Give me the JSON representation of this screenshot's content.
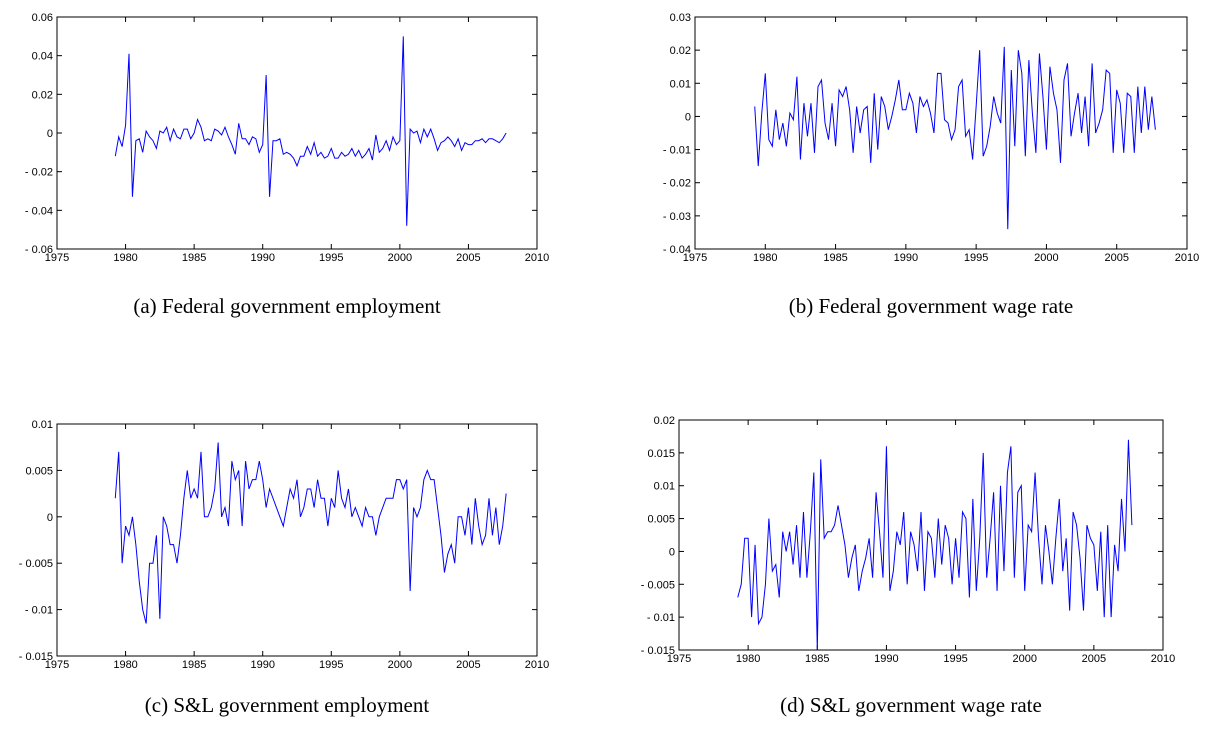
{
  "chart_data": [
    {
      "type": "line",
      "caption": "(a) Federal government employment",
      "color": "#0000ff",
      "xlim": [
        1975,
        2010
      ],
      "xticks": [
        1975,
        1980,
        1985,
        1990,
        1995,
        2000,
        2005,
        2010
      ],
      "ylim": [
        -0.06,
        0.06
      ],
      "yticks": [
        {
          "value": -0.06,
          "label": "- 0.06"
        },
        {
          "value": -0.04,
          "label": "- 0.04"
        },
        {
          "value": -0.02,
          "label": "- 0.02"
        },
        0,
        0.02,
        0.04,
        0.06
      ],
      "x": [
        1979.25,
        1979.5,
        1979.75,
        1980,
        1980.25,
        1980.5,
        1980.75,
        1981,
        1981.25,
        1981.5,
        1981.75,
        1982,
        1982.25,
        1982.5,
        1982.75,
        1983,
        1983.25,
        1983.5,
        1983.75,
        1984,
        1984.25,
        1984.5,
        1984.75,
        1985,
        1985.25,
        1985.5,
        1985.75,
        1986,
        1986.25,
        1986.5,
        1986.75,
        1987,
        1987.25,
        1987.5,
        1987.75,
        1988,
        1988.25,
        1988.5,
        1988.75,
        1989,
        1989.25,
        1989.5,
        1989.75,
        1990,
        1990.25,
        1990.5,
        1990.75,
        1991,
        1991.25,
        1991.5,
        1991.75,
        1992,
        1992.25,
        1992.5,
        1992.75,
        1993,
        1993.25,
        1993.5,
        1993.75,
        1994,
        1994.25,
        1994.5,
        1994.75,
        1995,
        1995.25,
        1995.5,
        1995.75,
        1996,
        1996.25,
        1996.5,
        1996.75,
        1997,
        1997.25,
        1997.5,
        1997.75,
        1998,
        1998.25,
        1998.5,
        1998.75,
        1999,
        1999.25,
        1999.5,
        1999.75,
        2000,
        2000.25,
        2000.5,
        2000.75,
        2001,
        2001.25,
        2001.5,
        2001.75,
        2002,
        2002.25,
        2002.5,
        2002.75,
        2003,
        2003.25,
        2003.5,
        2003.75,
        2004,
        2004.25,
        2004.5,
        2004.75,
        2005,
        2005.25,
        2005.5,
        2005.75,
        2006,
        2006.25,
        2006.5,
        2006.75,
        2007,
        2007.25,
        2007.5,
        2007.75
      ],
      "values": [
        -0.012,
        -0.002,
        -0.007,
        0.004,
        0.041,
        -0.033,
        -0.004,
        -0.003,
        -0.01,
        0.001,
        -0.002,
        -0.004,
        -0.008,
        0.001,
        0.0,
        0.003,
        -0.004,
        0.002,
        -0.002,
        -0.003,
        0.002,
        0.002,
        -0.003,
        0.0,
        0.007,
        0.003,
        -0.004,
        -0.003,
        -0.004,
        0.002,
        0.001,
        -0.001,
        0.003,
        -0.002,
        -0.006,
        -0.011,
        0.005,
        -0.003,
        -0.003,
        -0.006,
        -0.002,
        -0.003,
        -0.01,
        -0.006,
        0.03,
        -0.033,
        -0.004,
        -0.004,
        -0.003,
        -0.011,
        -0.01,
        -0.011,
        -0.013,
        -0.017,
        -0.012,
        -0.012,
        -0.007,
        -0.011,
        -0.005,
        -0.012,
        -0.01,
        -0.013,
        -0.012,
        -0.008,
        -0.013,
        -0.013,
        -0.01,
        -0.012,
        -0.011,
        -0.008,
        -0.012,
        -0.009,
        -0.013,
        -0.011,
        -0.008,
        -0.014,
        -0.001,
        -0.01,
        -0.008,
        -0.004,
        -0.009,
        -0.002,
        -0.006,
        -0.004,
        0.05,
        -0.048,
        0.002,
        0.0,
        0.001,
        -0.005,
        0.002,
        -0.002,
        0.002,
        -0.003,
        -0.009,
        -0.005,
        -0.004,
        -0.002,
        -0.004,
        -0.007,
        -0.003,
        -0.009,
        -0.005,
        -0.006,
        -0.006,
        -0.004,
        -0.004,
        -0.003,
        -0.005,
        -0.003,
        -0.003,
        -0.004,
        -0.005,
        -0.003,
        0.0
      ]
    },
    {
      "type": "line",
      "caption": "(b) Federal government wage rate",
      "color": "#0000ff",
      "xlim": [
        1975,
        2010
      ],
      "xticks": [
        1975,
        1980,
        1985,
        1990,
        1995,
        2000,
        2005,
        2010
      ],
      "ylim": [
        -0.04,
        0.03
      ],
      "yticks": [
        {
          "value": -0.04,
          "label": "- 0.04"
        },
        {
          "value": -0.03,
          "label": "- 0.03"
        },
        {
          "value": -0.02,
          "label": "- 0.02"
        },
        {
          "value": -0.01,
          "label": "- 0.01"
        },
        0,
        0.01,
        0.02,
        0.03
      ],
      "x": [
        1979.25,
        1979.5,
        1979.75,
        1980,
        1980.25,
        1980.5,
        1980.75,
        1981,
        1981.25,
        1981.5,
        1981.75,
        1982,
        1982.25,
        1982.5,
        1982.75,
        1983,
        1983.25,
        1983.5,
        1983.75,
        1984,
        1984.25,
        1984.5,
        1984.75,
        1985,
        1985.25,
        1985.5,
        1985.75,
        1986,
        1986.25,
        1986.5,
        1986.75,
        1987,
        1987.25,
        1987.5,
        1987.75,
        1988,
        1988.25,
        1988.5,
        1988.75,
        1989,
        1989.25,
        1989.5,
        1989.75,
        1990,
        1990.25,
        1990.5,
        1990.75,
        1991,
        1991.25,
        1991.5,
        1991.75,
        1992,
        1992.25,
        1992.5,
        1992.75,
        1993,
        1993.25,
        1993.5,
        1993.75,
        1994,
        1994.25,
        1994.5,
        1994.75,
        1995,
        1995.25,
        1995.5,
        1995.75,
        1996,
        1996.25,
        1996.5,
        1996.75,
        1997,
        1997.25,
        1997.5,
        1997.75,
        1998,
        1998.25,
        1998.5,
        1998.75,
        1999,
        1999.25,
        1999.5,
        1999.75,
        2000,
        2000.25,
        2000.5,
        2000.75,
        2001,
        2001.25,
        2001.5,
        2001.75,
        2002,
        2002.25,
        2002.5,
        2002.75,
        2003,
        2003.25,
        2003.5,
        2003.75,
        2004,
        2004.25,
        2004.5,
        2004.75,
        2005,
        2005.25,
        2005.5,
        2005.75,
        2006,
        2006.25,
        2006.5,
        2006.75,
        2007,
        2007.25,
        2007.5,
        2007.75
      ],
      "values": [
        0.003,
        -0.015,
        0.001,
        0.013,
        -0.007,
        -0.009,
        0.002,
        -0.007,
        -0.002,
        -0.009,
        0.001,
        -0.001,
        0.012,
        -0.013,
        0.004,
        -0.006,
        0.004,
        -0.011,
        0.009,
        0.011,
        -0.002,
        -0.007,
        0.004,
        -0.009,
        0.008,
        0.006,
        0.009,
        0.002,
        -0.011,
        0.003,
        -0.005,
        0.002,
        0.003,
        -0.014,
        0.007,
        -0.01,
        0.006,
        0.003,
        -0.004,
        0.0,
        0.005,
        0.011,
        0.002,
        0.002,
        0.007,
        0.004,
        -0.005,
        0.006,
        0.003,
        0.005,
        0.001,
        -0.005,
        0.013,
        0.013,
        -0.001,
        -0.002,
        -0.007,
        -0.004,
        0.009,
        0.011,
        -0.006,
        -0.004,
        -0.013,
        0.003,
        0.02,
        -0.012,
        -0.009,
        -0.003,
        0.006,
        0.001,
        -0.002,
        0.021,
        -0.034,
        0.014,
        -0.009,
        0.02,
        0.013,
        -0.012,
        0.017,
        0.001,
        -0.011,
        0.019,
        0.006,
        -0.01,
        0.015,
        0.007,
        0.002,
        -0.014,
        0.011,
        0.016,
        -0.006,
        0.001,
        0.007,
        -0.005,
        0.006,
        -0.009,
        0.016,
        -0.005,
        -0.002,
        0.002,
        0.014,
        0.013,
        -0.011,
        0.008,
        0.004,
        -0.011,
        0.007,
        0.006,
        -0.011,
        0.009,
        -0.005,
        0.009,
        -0.004,
        0.006,
        -0.004
      ]
    },
    {
      "type": "line",
      "caption": "(c) S&L government employment",
      "color": "#0000ff",
      "xlim": [
        1975,
        2010
      ],
      "xticks": [
        1975,
        1980,
        1985,
        1990,
        1995,
        2000,
        2005,
        2010
      ],
      "ylim": [
        -0.015,
        0.01
      ],
      "yticks": [
        {
          "value": -0.015,
          "label": "- 0.015"
        },
        {
          "value": -0.01,
          "label": "- 0.01"
        },
        {
          "value": -0.005,
          "label": "- 0.005"
        },
        0,
        0.005,
        0.01
      ],
      "x": [
        1979.25,
        1979.5,
        1979.75,
        1980,
        1980.25,
        1980.5,
        1980.75,
        1981,
        1981.25,
        1981.5,
        1981.75,
        1982,
        1982.25,
        1982.5,
        1982.75,
        1983,
        1983.25,
        1983.5,
        1983.75,
        1984,
        1984.25,
        1984.5,
        1984.75,
        1985,
        1985.25,
        1985.5,
        1985.75,
        1986,
        1986.25,
        1986.5,
        1986.75,
        1987,
        1987.25,
        1987.5,
        1987.75,
        1988,
        1988.25,
        1988.5,
        1988.75,
        1989,
        1989.25,
        1989.5,
        1989.75,
        1990,
        1990.25,
        1990.5,
        1990.75,
        1991,
        1991.25,
        1991.5,
        1991.75,
        1992,
        1992.25,
        1992.5,
        1992.75,
        1993,
        1993.25,
        1993.5,
        1993.75,
        1994,
        1994.25,
        1994.5,
        1994.75,
        1995,
        1995.25,
        1995.5,
        1995.75,
        1996,
        1996.25,
        1996.5,
        1996.75,
        1997,
        1997.25,
        1997.5,
        1997.75,
        1998,
        1998.25,
        1998.5,
        1998.75,
        1999,
        1999.25,
        1999.5,
        1999.75,
        2000,
        2000.25,
        2000.5,
        2000.75,
        2001,
        2001.25,
        2001.5,
        2001.75,
        2002,
        2002.25,
        2002.5,
        2002.75,
        2003,
        2003.25,
        2003.5,
        2003.75,
        2004,
        2004.25,
        2004.5,
        2004.75,
        2005,
        2005.25,
        2005.5,
        2005.75,
        2006,
        2006.25,
        2006.5,
        2006.75,
        2007,
        2007.25,
        2007.5,
        2007.75
      ],
      "values": [
        0.002,
        0.007,
        -0.005,
        -0.001,
        -0.002,
        0.0,
        -0.003,
        -0.007,
        -0.01,
        -0.0115,
        -0.005,
        -0.005,
        -0.002,
        -0.011,
        0.0,
        -0.001,
        -0.003,
        -0.003,
        -0.005,
        -0.002,
        0.002,
        0.005,
        0.002,
        0.003,
        0.002,
        0.007,
        0.0,
        0.0,
        0.001,
        0.003,
        0.008,
        0.0,
        0.001,
        -0.001,
        0.006,
        0.004,
        0.005,
        -0.001,
        0.006,
        0.003,
        0.004,
        0.004,
        0.006,
        0.004,
        0.001,
        0.003,
        0.002,
        0.001,
        0.0,
        -0.001,
        0.001,
        0.003,
        0.002,
        0.004,
        0.0,
        0.001,
        0.003,
        0.003,
        0.001,
        0.004,
        0.002,
        0.002,
        -0.001,
        0.002,
        0.001,
        0.005,
        0.002,
        0.001,
        0.003,
        0.0,
        0.001,
        0.0,
        -0.001,
        0.001,
        0.0,
        0.0,
        -0.002,
        0.0,
        0.001,
        0.002,
        0.002,
        0.002,
        0.004,
        0.004,
        0.003,
        0.004,
        -0.008,
        0.001,
        0.0,
        0.001,
        0.004,
        0.005,
        0.004,
        0.004,
        0.001,
        -0.002,
        -0.006,
        -0.004,
        -0.003,
        -0.005,
        0.0,
        0.0,
        -0.002,
        0.001,
        -0.003,
        0.002,
        -0.001,
        -0.003,
        -0.002,
        0.002,
        -0.002,
        0.001,
        -0.003,
        -0.001,
        0.0025
      ]
    },
    {
      "type": "line",
      "caption": "(d) S&L government wage rate",
      "color": "#0000ff",
      "xlim": [
        1975,
        2010
      ],
      "xticks": [
        1975,
        1980,
        1985,
        1990,
        1995,
        2000,
        2005,
        2010
      ],
      "ylim": [
        -0.015,
        0.02
      ],
      "yticks": [
        {
          "value": -0.015,
          "label": "- 0.015"
        },
        {
          "value": -0.01,
          "label": "- 0.01"
        },
        {
          "value": -0.005,
          "label": "- 0.005"
        },
        0,
        0.005,
        0.01,
        0.015,
        0.02
      ],
      "x": [
        1979.25,
        1979.5,
        1979.75,
        1980,
        1980.25,
        1980.5,
        1980.75,
        1981,
        1981.25,
        1981.5,
        1981.75,
        1982,
        1982.25,
        1982.5,
        1982.75,
        1983,
        1983.25,
        1983.5,
        1983.75,
        1984,
        1984.25,
        1984.5,
        1984.75,
        1985,
        1985.25,
        1985.5,
        1985.75,
        1986,
        1986.25,
        1986.5,
        1986.75,
        1987,
        1987.25,
        1987.5,
        1987.75,
        1988,
        1988.25,
        1988.5,
        1988.75,
        1989,
        1989.25,
        1989.5,
        1989.75,
        1990,
        1990.25,
        1990.5,
        1990.75,
        1991,
        1991.25,
        1991.5,
        1991.75,
        1992,
        1992.25,
        1992.5,
        1992.75,
        1993,
        1993.25,
        1993.5,
        1993.75,
        1994,
        1994.25,
        1994.5,
        1994.75,
        1995,
        1995.25,
        1995.5,
        1995.75,
        1996,
        1996.25,
        1996.5,
        1996.75,
        1997,
        1997.25,
        1997.5,
        1997.75,
        1998,
        1998.25,
        1998.5,
        1998.75,
        1999,
        1999.25,
        1999.5,
        1999.75,
        2000,
        2000.25,
        2000.5,
        2000.75,
        2001,
        2001.25,
        2001.5,
        2001.75,
        2002,
        2002.25,
        2002.5,
        2002.75,
        2003,
        2003.25,
        2003.5,
        2003.75,
        2004,
        2004.25,
        2004.5,
        2004.75,
        2005,
        2005.25,
        2005.5,
        2005.75,
        2006,
        2006.25,
        2006.5,
        2006.75,
        2007,
        2007.25,
        2007.5,
        2007.75
      ],
      "values": [
        -0.007,
        -0.005,
        0.002,
        0.002,
        -0.01,
        0.001,
        -0.011,
        -0.01,
        -0.005,
        0.005,
        -0.003,
        -0.002,
        -0.007,
        0.003,
        0.0,
        0.003,
        -0.002,
        0.004,
        -0.004,
        0.006,
        -0.004,
        0.003,
        0.012,
        -0.015,
        0.014,
        0.002,
        0.003,
        0.003,
        0.004,
        0.007,
        0.004,
        0.001,
        -0.004,
        -0.001,
        0.001,
        -0.006,
        -0.003,
        -0.001,
        0.002,
        -0.004,
        0.009,
        0.003,
        -0.004,
        0.016,
        -0.006,
        -0.003,
        0.003,
        0.001,
        0.006,
        -0.005,
        0.003,
        0.001,
        -0.003,
        0.006,
        -0.006,
        0.003,
        0.002,
        -0.004,
        0.005,
        -0.002,
        0.004,
        0.002,
        -0.005,
        0.002,
        -0.004,
        0.006,
        0.005,
        -0.007,
        0.008,
        -0.006,
        0.002,
        0.015,
        -0.004,
        0.002,
        0.009,
        -0.006,
        0.01,
        -0.003,
        0.012,
        0.016,
        -0.004,
        0.009,
        0.01,
        -0.006,
        0.004,
        0.003,
        0.012,
        0.002,
        -0.005,
        0.004,
        0.0,
        -0.005,
        0.002,
        0.008,
        -0.003,
        0.002,
        -0.009,
        0.006,
        0.004,
        -0.001,
        -0.009,
        0.004,
        0.002,
        0.001,
        -0.006,
        0.003,
        -0.01,
        0.004,
        -0.01,
        0.001,
        -0.003,
        0.008,
        0.0,
        0.017,
        0.004
      ]
    }
  ]
}
